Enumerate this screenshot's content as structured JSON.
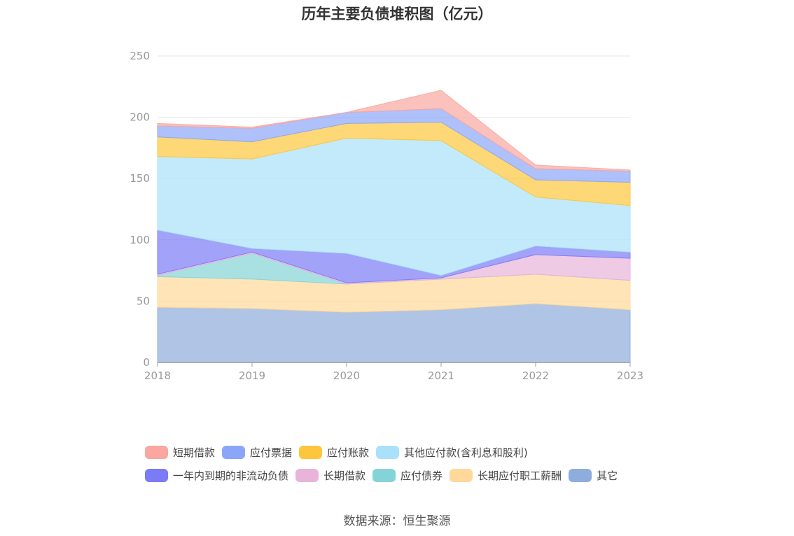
{
  "chart_data": {
    "type": "area",
    "stacked": true,
    "title": "历年主要负债堆积图（亿元）",
    "categories": [
      "2018",
      "2019",
      "2020",
      "2021",
      "2022",
      "2023"
    ],
    "ylim": [
      0,
      250
    ],
    "yticks": [
      "0",
      "50",
      "100",
      "150",
      "200",
      "250"
    ],
    "grid": true,
    "legend_position": "bottom",
    "series": [
      {
        "name": "其它",
        "color": "#8eaddc",
        "values": [
          45,
          44,
          41,
          43,
          48,
          43
        ]
      },
      {
        "name": "长期应付职工薪酬",
        "color": "#ffd89a",
        "values": [
          25,
          24,
          23,
          25,
          24,
          24
        ]
      },
      {
        "name": "应付债券",
        "color": "#84d4d7",
        "values": [
          1,
          21,
          0,
          0,
          0,
          0
        ]
      },
      {
        "name": "长期借款",
        "color": "#e8b4d9",
        "values": [
          1,
          1,
          1,
          1,
          16,
          18
        ]
      },
      {
        "name": "一年内到期的非流动负债",
        "color": "#7b7bf6",
        "values": [
          36,
          3,
          24,
          2,
          7,
          5
        ]
      },
      {
        "name": "其他应付款(含利息和股利)",
        "color": "#a9e1fa",
        "values": [
          60,
          73,
          94,
          110,
          40,
          38
        ]
      },
      {
        "name": "应付账款",
        "color": "#fdc63c",
        "values": [
          16,
          14,
          12,
          15,
          14,
          19
        ]
      },
      {
        "name": "应付票据",
        "color": "#8ba6f9",
        "values": [
          9,
          11,
          9,
          11,
          9,
          9
        ]
      },
      {
        "name": "短期借款",
        "color": "#f9a7a0",
        "values": [
          2,
          1,
          0,
          15,
          3,
          1
        ]
      }
    ]
  },
  "legend_rows": [
    [
      "短期借款",
      "应付票据",
      "应付账款",
      "其他应付款(含利息和股利)"
    ],
    [
      "一年内到期的非流动负债",
      "长期借款",
      "应付债券",
      "长期应付职工薪酬",
      "其它"
    ]
  ],
  "source": "数据来源：恒生聚源"
}
